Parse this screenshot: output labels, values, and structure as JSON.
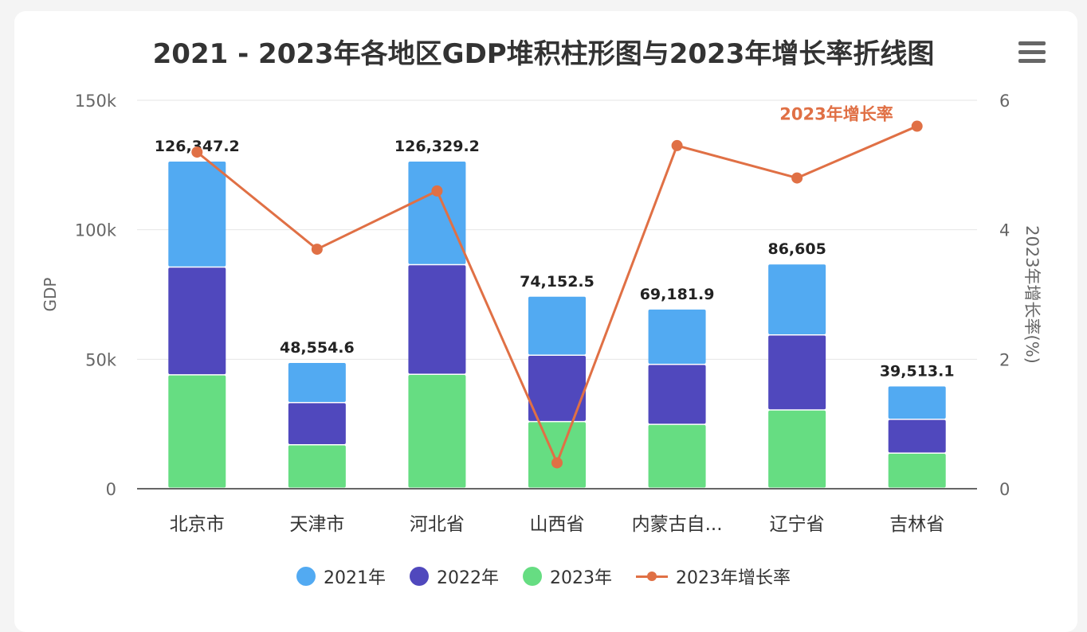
{
  "chart_data": {
    "type": "bar",
    "title": "2021 - 2023年各地区GDP堆积柱形图与2023年增长率折线图",
    "categories": [
      "北京市",
      "天津市",
      "河北省",
      "山西省",
      "内蒙古自...",
      "辽宁省",
      "吉林省"
    ],
    "series": [
      {
        "name": "2023年",
        "type": "bar",
        "stack": "gdp",
        "color": "#66dd82",
        "values": [
          43760.7,
          16737.3,
          43944.1,
          25698.2,
          24627.0,
          30209.4,
          13531.2
        ]
      },
      {
        "name": "2022年",
        "type": "bar",
        "stack": "gdp",
        "color": "#5048bd",
        "values": [
          41610.9,
          16311.3,
          42370.4,
          25642.6,
          23158.6,
          28975.1,
          13070.2
        ]
      },
      {
        "name": "2021年",
        "type": "bar",
        "stack": "gdp",
        "color": "#52aaf2",
        "values": [
          40975.6,
          15506.0,
          40014.7,
          22811.7,
          21396.3,
          27420.5,
          12911.7
        ]
      },
      {
        "name": "2023年增长率",
        "type": "line",
        "axis": "right",
        "color": "#e07045",
        "values": [
          5.2,
          3.7,
          4.6,
          0.4,
          5.3,
          4.8,
          5.6
        ]
      }
    ],
    "totals": [
      "126,347.2",
      "48,554.6",
      "126,329.2",
      "74,152.5",
      "69,181.9",
      "86,605",
      "39,513.1"
    ],
    "line_label": "2023年增长率",
    "ylabel": "GDP",
    "y2label": "2023年增长率(%)",
    "ylim": [
      0,
      150000
    ],
    "y2lim": [
      0,
      6
    ],
    "yticks": [
      "0",
      "50k",
      "100k",
      "150k"
    ],
    "y2ticks": [
      "0",
      "2",
      "4",
      "6"
    ],
    "grid": true,
    "legend": [
      {
        "name": "2021年",
        "color": "#52aaf2",
        "shape": "circle"
      },
      {
        "name": "2022年",
        "color": "#5048bd",
        "shape": "circle"
      },
      {
        "name": "2023年",
        "color": "#66dd82",
        "shape": "circle"
      },
      {
        "name": "2023年增长率",
        "color": "#e07045",
        "shape": "line"
      }
    ],
    "legend_position": "bottom"
  },
  "toolbar": {
    "menu_icon": "hamburger-menu-icon"
  }
}
